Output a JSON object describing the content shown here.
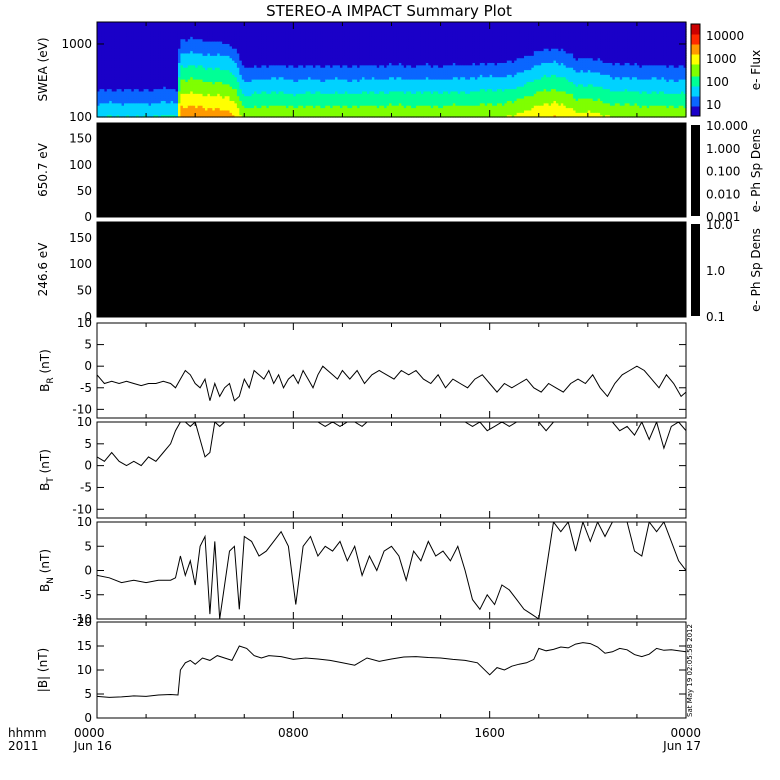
{
  "title": "STEREO-A IMPACT Summary Plot",
  "timestamp": "Sat May 19 02:05:58 2012",
  "time_axis": {
    "row_label": "hhmm",
    "year_label": "2011",
    "ticks": [
      {
        "hour": 0,
        "label": "0000",
        "date": "Jun 16"
      },
      {
        "hour": 8,
        "label": "0800",
        "date": ""
      },
      {
        "hour": 16,
        "label": "1600",
        "date": ""
      },
      {
        "hour": 24,
        "label": "0000",
        "date": "Jun 17"
      }
    ]
  },
  "colors": {
    "spectrogram_scale": [
      "#1a00c8",
      "#0a66ff",
      "#00d2ff",
      "#00ff96",
      "#7fff00",
      "#ffff00",
      "#ff9900",
      "#ff2a00",
      "#cc0000"
    ],
    "pad_fill": "#000000",
    "line": "#000000"
  },
  "chart_data": [
    {
      "type": "heatmap",
      "ylabel": "SWEA (eV)",
      "ylim": [
        100,
        2000
      ],
      "yscale": "log",
      "yticks": [
        "1000",
        "100"
      ],
      "colorbar_label": "e- Flux",
      "colorbar_ticks": [
        "10000",
        "1000",
        "100",
        "10"
      ],
      "colorbar_range": [
        3,
        30000
      ],
      "columns": [
        {
          "h": 0.0,
          "lo": 60
        },
        {
          "h": 0.5,
          "lo": 70
        },
        {
          "h": 1.0,
          "lo": 70
        },
        {
          "h": 1.5,
          "lo": 65
        },
        {
          "h": 2.0,
          "lo": 70
        },
        {
          "h": 2.5,
          "lo": 70
        },
        {
          "h": 3.0,
          "lo": 75
        },
        {
          "h": 3.3,
          "lo": 70
        },
        {
          "h": 3.4,
          "lo": 3000
        },
        {
          "h": 4.0,
          "lo": 3200
        },
        {
          "h": 4.5,
          "lo": 2800
        },
        {
          "h": 5.0,
          "lo": 2500
        },
        {
          "h": 5.5,
          "lo": 2000
        },
        {
          "h": 5.8,
          "lo": 800
        },
        {
          "h": 6.0,
          "lo": 300
        },
        {
          "h": 6.5,
          "lo": 400
        },
        {
          "h": 7.0,
          "lo": 450
        },
        {
          "h": 8.0,
          "lo": 400
        },
        {
          "h": 9.0,
          "lo": 420
        },
        {
          "h": 10.0,
          "lo": 400
        },
        {
          "h": 11.0,
          "lo": 420
        },
        {
          "h": 12.0,
          "lo": 450
        },
        {
          "h": 13.0,
          "lo": 420
        },
        {
          "h": 14.0,
          "lo": 430
        },
        {
          "h": 15.0,
          "lo": 450
        },
        {
          "h": 16.0,
          "lo": 500
        },
        {
          "h": 17.0,
          "lo": 550
        },
        {
          "h": 18.0,
          "lo": 1200
        },
        {
          "h": 18.7,
          "lo": 1600
        },
        {
          "h": 19.0,
          "lo": 1300
        },
        {
          "h": 19.5,
          "lo": 700
        },
        {
          "h": 20.0,
          "lo": 800
        },
        {
          "h": 20.5,
          "lo": 600
        },
        {
          "h": 21.0,
          "lo": 500
        },
        {
          "h": 22.0,
          "lo": 450
        },
        {
          "h": 23.0,
          "lo": 420
        },
        {
          "h": 24.0,
          "lo": 400
        }
      ]
    },
    {
      "type": "heatmap",
      "ylabel": "650.7 eV",
      "ylim": [
        0,
        180
      ],
      "yticks": [
        "150",
        "100",
        "50",
        "0"
      ],
      "colorbar_label": "e- Ph Sp Dens",
      "colorbar_ticks": [
        "10.000",
        "1.000",
        "0.100",
        "0.010",
        "0.001"
      ],
      "colorbar_range": [
        0.001,
        10
      ]
    },
    {
      "type": "heatmap",
      "ylabel": "246.6 eV",
      "ylim": [
        0,
        180
      ],
      "yticks": [
        "150",
        "100",
        "50",
        "0"
      ],
      "colorbar_label": "e- Ph Sp Dens",
      "colorbar_ticks": [
        "10.0",
        "1.0",
        "0.1"
      ],
      "colorbar_range": [
        0.1,
        10
      ]
    },
    {
      "type": "line",
      "ylabel": "B",
      "ylabel_sub": "R",
      "ylabel_unit": "(nT)",
      "ylim": [
        -12,
        10
      ],
      "yticks": [
        "10",
        "5",
        "0",
        "-5",
        "-10"
      ],
      "x": [
        0,
        0.3,
        0.6,
        0.9,
        1.2,
        1.5,
        1.8,
        2.1,
        2.4,
        2.7,
        3.0,
        3.2,
        3.4,
        3.6,
        3.8,
        4.0,
        4.2,
        4.4,
        4.6,
        4.8,
        5.0,
        5.2,
        5.4,
        5.6,
        5.8,
        6.0,
        6.2,
        6.4,
        6.6,
        6.8,
        7.0,
        7.2,
        7.4,
        7.6,
        7.8,
        8.0,
        8.2,
        8.4,
        8.6,
        8.8,
        9.0,
        9.2,
        9.4,
        9.6,
        9.8,
        10.0,
        10.3,
        10.6,
        10.9,
        11.2,
        11.5,
        11.8,
        12.1,
        12.4,
        12.7,
        13.0,
        13.3,
        13.6,
        13.9,
        14.2,
        14.5,
        14.8,
        15.1,
        15.4,
        15.7,
        16.0,
        16.3,
        16.6,
        16.9,
        17.2,
        17.5,
        17.8,
        18.1,
        18.4,
        18.7,
        19.0,
        19.3,
        19.6,
        19.9,
        20.2,
        20.5,
        20.8,
        21.1,
        21.4,
        21.7,
        22.0,
        22.3,
        22.6,
        22.9,
        23.2,
        23.5,
        23.8,
        24.0
      ],
      "y": [
        -2,
        -4,
        -3.5,
        -4,
        -3.5,
        -4,
        -4.5,
        -4,
        -4,
        -3.5,
        -4,
        -5,
        -3,
        -1,
        -2,
        -4,
        -5,
        -3,
        -8,
        -4,
        -7,
        -5,
        -4,
        -8,
        -7,
        -3,
        -5,
        -1,
        -2,
        -3,
        -1,
        -4,
        -2,
        -5,
        -3,
        -2,
        -4,
        -1,
        -3,
        -5,
        -2,
        0,
        -1,
        -2,
        -3,
        -1,
        -3,
        -1,
        -4,
        -2,
        -1,
        -2,
        -3,
        -1,
        -2,
        -1,
        -3,
        -4,
        -2,
        -5,
        -3,
        -4,
        -5,
        -3,
        -2,
        -4,
        -6,
        -4,
        -5,
        -4,
        -3,
        -5,
        -6,
        -4,
        -5,
        -6,
        -4,
        -3,
        -4,
        -2,
        -5,
        -7,
        -4,
        -2,
        -1,
        0,
        -1,
        -3,
        -5,
        -2,
        -4,
        -7,
        -6
      ]
    },
    {
      "type": "line",
      "ylabel": "B",
      "ylabel_sub": "T",
      "ylabel_unit": "(nT)",
      "ylim": [
        -12,
        10
      ],
      "yticks": [
        "10",
        "5",
        "0",
        "-5",
        "-10"
      ],
      "x": [
        0,
        0.3,
        0.6,
        0.9,
        1.2,
        1.5,
        1.8,
        2.1,
        2.4,
        2.7,
        3.0,
        3.2,
        3.4,
        3.6,
        3.8,
        4.0,
        4.2,
        4.4,
        4.6,
        4.8,
        5.0,
        5.2,
        5.4,
        5.6,
        5.8,
        6.0,
        6.2,
        6.4,
        6.6,
        6.8,
        7.0,
        8.0,
        9.0,
        9.3,
        9.6,
        9.9,
        10.2,
        10.5,
        10.8,
        11.0,
        12.0,
        13.0,
        14.0,
        15.0,
        15.3,
        15.6,
        15.9,
        16.2,
        16.5,
        16.8,
        17.1,
        17.4,
        17.7,
        18.0,
        18.3,
        18.6,
        19.0,
        20.0,
        21.0,
        21.3,
        21.6,
        21.9,
        22.2,
        22.5,
        22.8,
        23.1,
        23.4,
        23.7,
        24.0
      ],
      "y": [
        2,
        1,
        3,
        1,
        0,
        1,
        0,
        2,
        1,
        3,
        5,
        8,
        10,
        10,
        9,
        10,
        6,
        2,
        3,
        10,
        9,
        10,
        10,
        10,
        10,
        10,
        10,
        10,
        10,
        10,
        10,
        10,
        10,
        9,
        10,
        9,
        10,
        10,
        9,
        10,
        10,
        10,
        10,
        10,
        9,
        10,
        8,
        9,
        10,
        9,
        10,
        10,
        10,
        10,
        8,
        10,
        10,
        10,
        10,
        8,
        9,
        7,
        10,
        6,
        10,
        4,
        9,
        10,
        8
      ]
    },
    {
      "type": "line",
      "ylabel": "B",
      "ylabel_sub": "N",
      "ylabel_unit": "(nT)",
      "ylim": [
        -10,
        10
      ],
      "yticks": [
        "10",
        "5",
        "0",
        "-5",
        "-10"
      ],
      "x": [
        0,
        0.5,
        1.0,
        1.5,
        2.0,
        2.5,
        3.0,
        3.2,
        3.4,
        3.6,
        3.8,
        4.0,
        4.2,
        4.4,
        4.6,
        4.8,
        5.0,
        5.2,
        5.4,
        5.6,
        5.8,
        6.0,
        6.3,
        6.6,
        6.9,
        7.2,
        7.5,
        7.8,
        8.1,
        8.4,
        8.7,
        9.0,
        9.3,
        9.6,
        9.9,
        10.2,
        10.5,
        10.8,
        11.1,
        11.4,
        11.7,
        12.0,
        12.3,
        12.6,
        12.9,
        13.2,
        13.5,
        13.8,
        14.1,
        14.4,
        14.7,
        15.0,
        15.3,
        15.6,
        15.9,
        16.2,
        16.5,
        16.8,
        17.1,
        17.4,
        17.7,
        18.0,
        18.3,
        18.6,
        18.9,
        19.2,
        19.5,
        19.8,
        20.1,
        20.4,
        20.7,
        21.0,
        21.3,
        21.6,
        21.9,
        22.2,
        22.5,
        22.8,
        23.1,
        23.4,
        23.7,
        24.0
      ],
      "y": [
        -1,
        -1.5,
        -2.5,
        -2,
        -2.5,
        -2,
        -2,
        -1.5,
        3,
        -1,
        2,
        -3,
        5,
        7,
        -9,
        6,
        -10,
        -3,
        4,
        5,
        -8,
        7,
        6,
        3,
        4,
        6,
        8,
        5,
        -7,
        5,
        7,
        3,
        5,
        4,
        6,
        2,
        5,
        -1,
        3,
        0,
        4,
        5,
        3,
        -2,
        4,
        2,
        6,
        3,
        4,
        2,
        5,
        0,
        -6,
        -8,
        -5,
        -7,
        -3,
        -4,
        -6,
        -8,
        -9,
        -10,
        0,
        10,
        8,
        10,
        4,
        10,
        6,
        10,
        7,
        10,
        10,
        10,
        4,
        3,
        10,
        8,
        10,
        6,
        2,
        0
      ]
    },
    {
      "type": "line",
      "ylabel": "|B| (nT)",
      "ylim": [
        0,
        20
      ],
      "yticks": [
        "20",
        "15",
        "10",
        "5",
        "0"
      ],
      "x": [
        0,
        0.5,
        1.0,
        1.5,
        2.0,
        2.5,
        3.0,
        3.3,
        3.4,
        3.6,
        3.8,
        4.0,
        4.3,
        4.6,
        4.9,
        5.2,
        5.5,
        5.8,
        6.1,
        6.4,
        6.7,
        7.0,
        7.5,
        8.0,
        8.5,
        9.0,
        9.5,
        10.0,
        10.5,
        11.0,
        11.5,
        12.0,
        12.5,
        13.0,
        13.5,
        14.0,
        14.5,
        15.0,
        15.5,
        16.0,
        16.3,
        16.6,
        16.9,
        17.2,
        17.5,
        17.8,
        18.0,
        18.3,
        18.6,
        18.9,
        19.2,
        19.5,
        19.8,
        20.1,
        20.4,
        20.7,
        21.0,
        21.3,
        21.6,
        21.9,
        22.2,
        22.5,
        22.8,
        23.1,
        23.4,
        23.7,
        24.0
      ],
      "y": [
        4.5,
        4.3,
        4.4,
        4.6,
        4.5,
        4.8,
        4.9,
        4.8,
        10,
        11.5,
        12,
        11.2,
        12.5,
        12,
        13,
        12.5,
        12,
        15,
        14.5,
        13,
        12.5,
        13,
        12.8,
        12.2,
        12.5,
        12.3,
        12,
        11.5,
        11,
        12.5,
        11.8,
        12.3,
        12.7,
        12.8,
        12.6,
        12.5,
        12.2,
        12.0,
        11.5,
        9.0,
        10.5,
        10,
        10.8,
        11.2,
        11.5,
        12.2,
        14.5,
        14,
        14.3,
        14.8,
        14.6,
        15.4,
        15.7,
        15.5,
        14.8,
        13.5,
        13.8,
        14.5,
        14.2,
        13.2,
        12.8,
        13.3,
        14.5,
        14.1,
        14.2,
        14.0,
        13.8
      ]
    }
  ]
}
